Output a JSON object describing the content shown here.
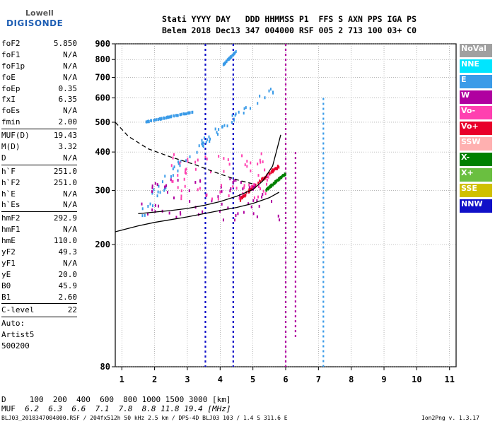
{
  "logo": {
    "top": "Lowell",
    "bottom": "DIGISONDE"
  },
  "header": {
    "line1": "Stati YYYY DAY   DDD HHMMSS P1  FFS S AXN PPS IGA PS",
    "line2": "Belem 2018 Dec13 347 004000 RSF 005 2 713 100 03+ C0"
  },
  "sidebar": [
    {
      "label": "foF2",
      "value": "5.850"
    },
    {
      "label": "foF1",
      "value": "N/A"
    },
    {
      "label": "foF1p",
      "value": "N/A"
    },
    {
      "label": "foE",
      "value": "N/A"
    },
    {
      "label": "foEp",
      "value": "0.35"
    },
    {
      "label": "fxI",
      "value": "6.35"
    },
    {
      "label": "foEs",
      "value": "N/A"
    },
    {
      "label": "fmin",
      "value": "2.00"
    },
    {
      "sep": true
    },
    {
      "label": "MUF(D)",
      "value": "19.43"
    },
    {
      "label": "M(D)",
      "value": "3.32"
    },
    {
      "label": "D",
      "value": "N/A"
    },
    {
      "sep": true
    },
    {
      "label": "h`F",
      "value": "251.0"
    },
    {
      "label": "h`F2",
      "value": "251.0"
    },
    {
      "label": "h`E",
      "value": "N/A"
    },
    {
      "label": "h`Es",
      "value": "N/A"
    },
    {
      "sep": true
    },
    {
      "label": "hmF2",
      "value": "292.9"
    },
    {
      "label": "hmF1",
      "value": "N/A"
    },
    {
      "label": "hmE",
      "value": "110.0"
    },
    {
      "label": "yF2",
      "value": "49.3"
    },
    {
      "label": "yF1",
      "value": "N/A"
    },
    {
      "label": "yE",
      "value": "20.0"
    },
    {
      "label": "B0",
      "value": "45.9"
    },
    {
      "label": "B1",
      "value": "2.60"
    },
    {
      "sep": true
    },
    {
      "label": "C-level",
      "value": "22"
    },
    {
      "sep": true
    },
    {
      "label": "Auto:",
      "value": ""
    },
    {
      "label": "Artist5",
      "value": ""
    },
    {
      "label": "500200",
      "value": ""
    }
  ],
  "footer": {
    "d_line": "D     100  200  400  600  800 1000 1500 3000 [km]",
    "muf_label": "MUF",
    "muf_values": "  6.2  6.3  6.6  7.1  7.8  8.8 11.8 19.4 [MHz]",
    "file_info": "BLJ03_2018347004000.RSF / 204fx512h 50 kHz 2.5 km / DPS-4D BLJ03 103 / 1.4 S 311.6 E",
    "version": "Ion2Png v. 1.3.17"
  },
  "legend": [
    {
      "label": "NoVal",
      "color": "#a0a0a0"
    },
    {
      "label": "NNE",
      "color": "#00e5ff"
    },
    {
      "label": "E",
      "color": "#3a9be8"
    },
    {
      "label": "W",
      "color": "#b000a0"
    },
    {
      "label": "Vo-",
      "color": "#ff40b0"
    },
    {
      "label": "Vo+",
      "color": "#e8002a"
    },
    {
      "label": "SSW",
      "color": "#ffb0b0"
    },
    {
      "label": "X-",
      "color": "#008000"
    },
    {
      "label": "X+",
      "color": "#6abf40"
    },
    {
      "label": "SSE",
      "color": "#d0c000"
    },
    {
      "label": "NNW",
      "color": "#1010c8"
    }
  ],
  "chart_data": {
    "type": "scatter",
    "xlim": [
      0.8,
      11.2
    ],
    "ylim": [
      80,
      900
    ],
    "y_scale": "log",
    "x_ticks": [
      1,
      2,
      3,
      4,
      5,
      6,
      7,
      8,
      9,
      10,
      11
    ],
    "y_ticks": [
      80,
      200,
      300,
      400,
      500,
      600,
      700,
      800,
      900
    ],
    "grid": true,
    "curves": [
      {
        "name": "ionogram-trace",
        "color": "#000000",
        "style": "solid",
        "x": [
          1.5,
          2.0,
          2.5,
          3.0,
          3.5,
          4.0,
          4.5,
          5.0,
          5.3,
          5.6,
          5.85
        ],
        "y": [
          252,
          255,
          258,
          262,
          268,
          276,
          287,
          302,
          322,
          360,
          455
        ]
      },
      {
        "name": "profile-real-height",
        "color": "#000000",
        "style": "solid",
        "x": [
          0.8,
          1.5,
          2.0,
          3.0,
          4.0,
          4.5,
          5.0,
          5.5,
          5.8
        ],
        "y": [
          220,
          230,
          236,
          246,
          258,
          264,
          272,
          284,
          296
        ]
      },
      {
        "name": "extrapolation",
        "color": "#000000",
        "style": "dashed",
        "x": [
          0.8,
          1.2,
          1.8,
          2.5,
          3.2,
          3.8,
          4.5,
          5.0
        ],
        "y": [
          500,
          450,
          410,
          385,
          365,
          345,
          325,
          315
        ]
      }
    ],
    "point_groups": [
      {
        "name": "E",
        "color": "#3a9be8",
        "x": [
          1.6,
          5.8
        ],
        "y": [
          250,
          650
        ],
        "slope": 1
      },
      {
        "name": "E",
        "color": "#3a9be8",
        "x": [
          1.7,
          3.2
        ],
        "y": [
          500,
          540
        ],
        "slope": 1
      },
      {
        "name": "E",
        "color": "#3a9be8",
        "x": [
          4.1,
          4.5
        ],
        "y": [
          770,
          850
        ],
        "slope": 1
      },
      {
        "name": "Vo+",
        "color": "#e8002a",
        "x": [
          4.6,
          5.8
        ],
        "y": [
          280,
          360
        ],
        "slope": 1
      },
      {
        "name": "W",
        "color": "#b000a0",
        "x": [
          1.5,
          5.9
        ],
        "y": [
          240,
          330
        ],
        "slope": 0
      },
      {
        "name": "X-",
        "color": "#008000",
        "x": [
          5.4,
          6.0
        ],
        "y": [
          300,
          340
        ],
        "slope": 1
      },
      {
        "name": "Vo-",
        "color": "#ff40b0",
        "x": [
          2.5,
          5.5
        ],
        "y": [
          280,
          400
        ],
        "slope": 0
      }
    ],
    "vertical_streaks": [
      {
        "x": 3.55,
        "ymin": 80,
        "ymax": 900,
        "color": "#1010c8"
      },
      {
        "x": 4.4,
        "ymin": 80,
        "ymax": 900,
        "color": "#1010c8"
      },
      {
        "x": 6.0,
        "ymin": 80,
        "ymax": 900,
        "color": "#b000a0"
      },
      {
        "x": 6.3,
        "ymin": 100,
        "ymax": 400,
        "color": "#b000a0"
      },
      {
        "x": 7.15,
        "ymin": 80,
        "ymax": 600,
        "color": "#3a9be8"
      }
    ]
  }
}
